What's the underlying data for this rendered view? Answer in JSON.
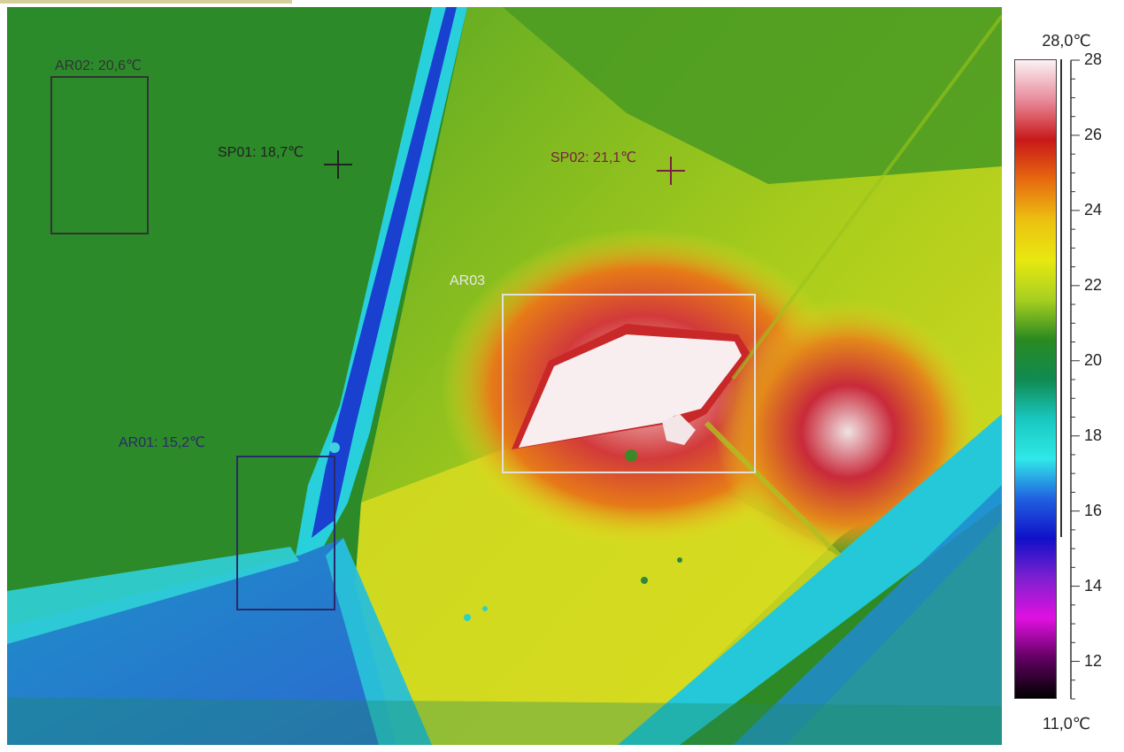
{
  "image": {
    "description_colors": {
      "cold": "#1a2fd0",
      "cool": "#2fd8e0",
      "mid": "#1d8a2a",
      "warm": "#e8e020",
      "hot": "#d01818",
      "hottest": "#fbeef0"
    }
  },
  "measurements": {
    "ar01": {
      "label": "AR01: 15,2℃",
      "color": "#2a2a6a"
    },
    "ar02": {
      "label": "AR02: 20,6℃",
      "color": "#333333"
    },
    "ar03": {
      "label": "AR03",
      "color": "#e8e8e8"
    },
    "sp01": {
      "label": "SP01: 18,7℃",
      "color": "#222222"
    },
    "sp02": {
      "label": "SP02: 21,1℃",
      "color": "#7a2040"
    }
  },
  "scale": {
    "max_label": "28,0℃",
    "min_label": "11,0℃",
    "ticks": [
      "28",
      "26",
      "24",
      "22",
      "20",
      "18",
      "16",
      "14",
      "12"
    ],
    "palette": [
      "#fbf2f4",
      "#e88a9a",
      "#c81818",
      "#e86a10",
      "#ecc010",
      "#e8e810",
      "#a8d020",
      "#2a8a20",
      "#108a50",
      "#18c8c0",
      "#30e8e8",
      "#2060e0",
      "#1010c8",
      "#8020d0",
      "#e010e0",
      "#600060",
      "#000000"
    ]
  }
}
